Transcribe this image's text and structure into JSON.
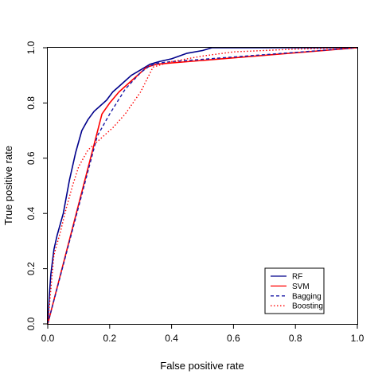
{
  "chart_data": {
    "type": "line",
    "xlabel": "False positive rate",
    "ylabel": "True positive rate",
    "xlim": [
      0,
      1
    ],
    "ylim": [
      0,
      1
    ],
    "xticks": [
      "0.0",
      "0.2",
      "0.4",
      "0.6",
      "0.8",
      "1.0"
    ],
    "yticks": [
      "0.0",
      "0.2",
      "0.4",
      "0.6",
      "0.8",
      "1.0"
    ],
    "grid": false,
    "legend_position": "bottom-right",
    "series": [
      {
        "name": "RF",
        "color": "#00008b",
        "dash": "solid",
        "x": [
          0,
          0.005,
          0.01,
          0.02,
          0.03,
          0.05,
          0.07,
          0.09,
          0.11,
          0.13,
          0.15,
          0.17,
          0.19,
          0.21,
          0.23,
          0.25,
          0.27,
          0.3,
          0.33,
          0.36,
          0.4,
          0.45,
          0.5,
          0.53,
          0.6,
          0.8,
          1.0
        ],
        "y": [
          0,
          0.1,
          0.18,
          0.27,
          0.32,
          0.4,
          0.52,
          0.62,
          0.7,
          0.74,
          0.77,
          0.79,
          0.81,
          0.84,
          0.86,
          0.88,
          0.9,
          0.92,
          0.94,
          0.95,
          0.96,
          0.98,
          0.99,
          1.0,
          1.0,
          1.0,
          1.0
        ]
      },
      {
        "name": "SVM",
        "color": "#ff0000",
        "dash": "solid",
        "x": [
          0,
          0.175,
          0.2,
          0.23,
          0.27,
          0.32,
          0.35,
          0.4,
          1.0
        ],
        "y": [
          0,
          0.76,
          0.8,
          0.84,
          0.88,
          0.93,
          0.94,
          0.945,
          1.0
        ]
      },
      {
        "name": "Bagging",
        "color": "#1a1aa6",
        "dash": "dashed",
        "x": [
          0,
          0.16,
          0.2,
          0.25,
          0.3,
          0.33,
          0.36,
          0.4,
          1.0
        ],
        "y": [
          0,
          0.68,
          0.76,
          0.85,
          0.91,
          0.935,
          0.945,
          0.95,
          1.0
        ]
      },
      {
        "name": "Boosting",
        "color": "#ff0000",
        "dash": "dotted",
        "x": [
          0,
          0.02,
          0.04,
          0.06,
          0.08,
          0.1,
          0.13,
          0.17,
          0.21,
          0.25,
          0.3,
          0.34,
          0.4,
          0.5,
          0.6,
          0.8,
          1.0
        ],
        "y": [
          0,
          0.25,
          0.33,
          0.42,
          0.5,
          0.57,
          0.63,
          0.67,
          0.71,
          0.76,
          0.84,
          0.93,
          0.95,
          0.97,
          0.985,
          0.995,
          1.0
        ]
      }
    ]
  }
}
